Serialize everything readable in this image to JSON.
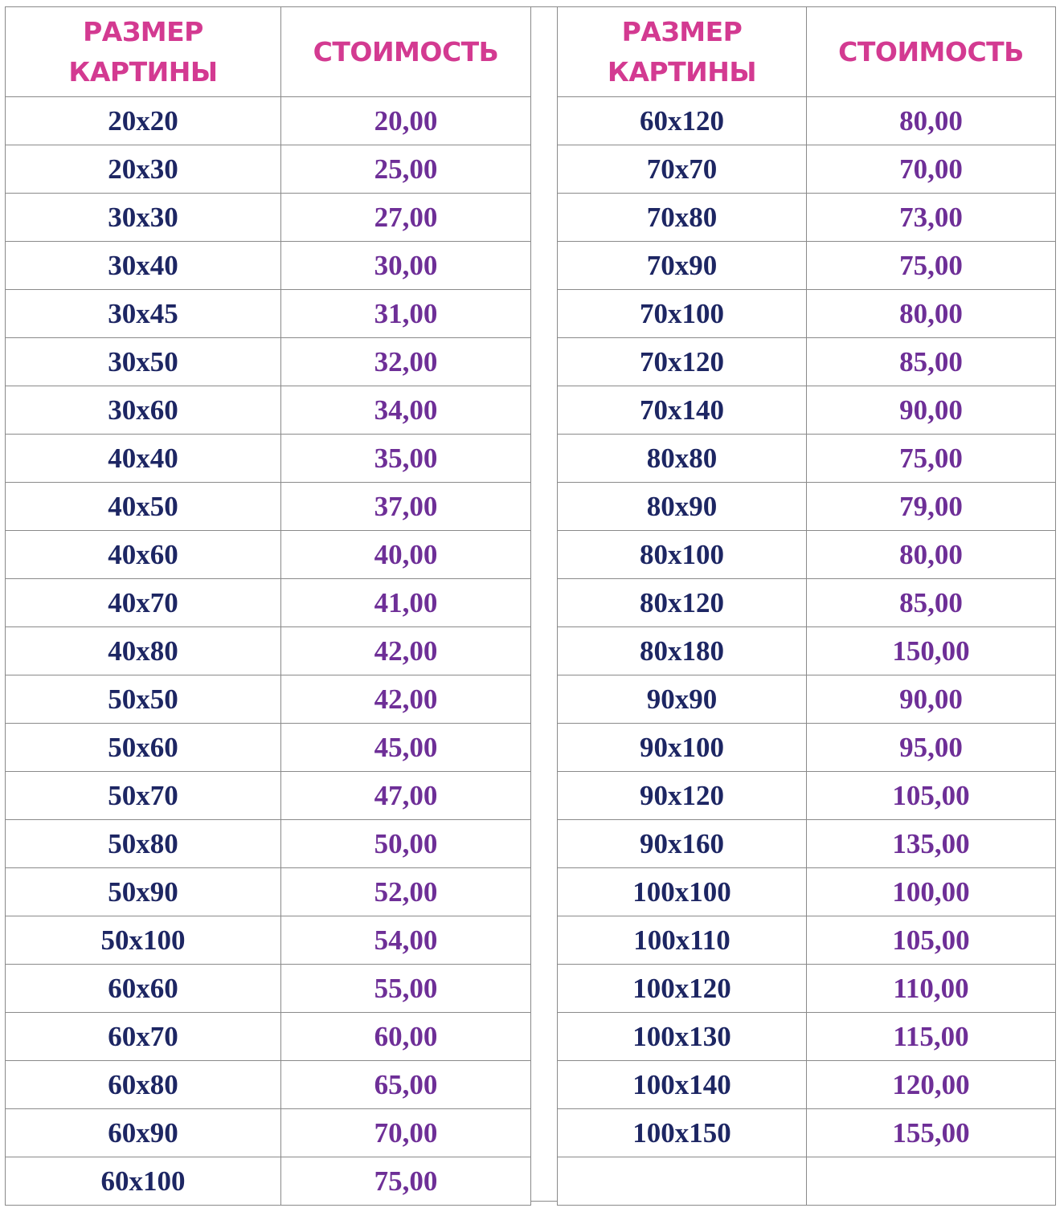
{
  "headers": {
    "size": "РАЗМЕР КАРТИНЫ",
    "price": "СТОИМОСТЬ",
    "size_line1": "РАЗМЕР",
    "size_line2": "КАРТИНЫ"
  },
  "colors": {
    "header": "#d33a91",
    "size_text": "#1d2663",
    "price_text": "#6e2f97",
    "grid": "#8a8a8a"
  },
  "left_rows": [
    {
      "size": "20x20",
      "price": "20,00"
    },
    {
      "size": "20x30",
      "price": "25,00"
    },
    {
      "size": "30x30",
      "price": "27,00"
    },
    {
      "size": "30x40",
      "price": "30,00"
    },
    {
      "size": "30x45",
      "price": "31,00"
    },
    {
      "size": "30x50",
      "price": "32,00"
    },
    {
      "size": "30x60",
      "price": "34,00"
    },
    {
      "size": "40x40",
      "price": "35,00"
    },
    {
      "size": "40x50",
      "price": "37,00"
    },
    {
      "size": "40x60",
      "price": "40,00"
    },
    {
      "size": "40x70",
      "price": "41,00"
    },
    {
      "size": "40x80",
      "price": "42,00"
    },
    {
      "size": "50x50",
      "price": "42,00"
    },
    {
      "size": "50x60",
      "price": "45,00"
    },
    {
      "size": "50x70",
      "price": "47,00"
    },
    {
      "size": "50x80",
      "price": "50,00"
    },
    {
      "size": "50x90",
      "price": "52,00"
    },
    {
      "size": "50x100",
      "price": "54,00"
    },
    {
      "size": "60x60",
      "price": "55,00"
    },
    {
      "size": "60x70",
      "price": "60,00"
    },
    {
      "size": "60x80",
      "price": "65,00"
    },
    {
      "size": "60x90",
      "price": "70,00"
    },
    {
      "size": "60x100",
      "price": "75,00"
    }
  ],
  "right_rows": [
    {
      "size": "60x120",
      "price": "80,00"
    },
    {
      "size": "70x70",
      "price": "70,00"
    },
    {
      "size": "70x80",
      "price": "73,00"
    },
    {
      "size": "70x90",
      "price": "75,00"
    },
    {
      "size": "70x100",
      "price": "80,00"
    },
    {
      "size": "70x120",
      "price": "85,00"
    },
    {
      "size": "70x140",
      "price": "90,00"
    },
    {
      "size": "80x80",
      "price": "75,00"
    },
    {
      "size": "80x90",
      "price": "79,00"
    },
    {
      "size": "80x100",
      "price": "80,00"
    },
    {
      "size": "80x120",
      "price": "85,00"
    },
    {
      "size": "80x180",
      "price": "150,00"
    },
    {
      "size": "90x90",
      "price": "90,00"
    },
    {
      "size": "90x100",
      "price": "95,00"
    },
    {
      "size": "90x120",
      "price": "105,00"
    },
    {
      "size": "90x160",
      "price": "135,00"
    },
    {
      "size": "100x100",
      "price": "100,00"
    },
    {
      "size": "100x110",
      "price": "105,00"
    },
    {
      "size": "100x120",
      "price": "110,00"
    },
    {
      "size": "100x130",
      "price": "115,00"
    },
    {
      "size": "100x140",
      "price": "120,00"
    },
    {
      "size": "100x150",
      "price": "155,00"
    }
  ]
}
